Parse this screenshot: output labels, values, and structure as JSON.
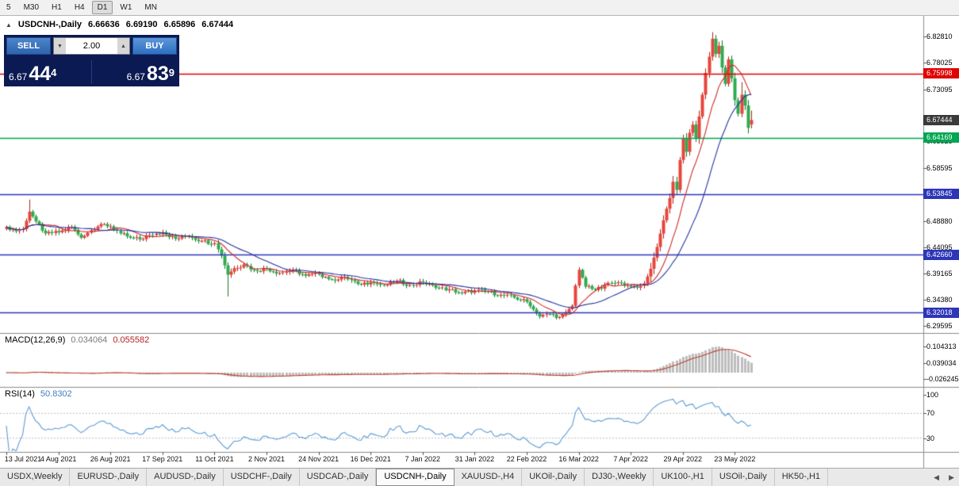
{
  "toolbar": {
    "timeframes": [
      {
        "label": "5",
        "active": false
      },
      {
        "label": "M30",
        "active": false
      },
      {
        "label": "H1",
        "active": false
      },
      {
        "label": "H4",
        "active": false
      },
      {
        "label": "D1",
        "active": true
      },
      {
        "label": "W1",
        "active": false
      },
      {
        "label": "MN",
        "active": false
      }
    ]
  },
  "chart_header": {
    "collapse_icon": "▲",
    "symbol": "USDCNH-,Daily",
    "open": "6.66636",
    "high": "6.69190",
    "low": "6.65896",
    "close": "6.67444"
  },
  "trade_panel": {
    "sell_label": "SELL",
    "buy_label": "BUY",
    "volume": "2.00",
    "volume_down_icon": "▼",
    "volume_up_icon": "▲",
    "sell_price": {
      "small": "6.67",
      "big": "44",
      "sup": "4"
    },
    "buy_price": {
      "small": "6.67",
      "big": "83",
      "sup": "9"
    }
  },
  "price_axis": {
    "ticks": [
      "6.82810",
      "6.78025",
      "6.73095",
      "6.63525",
      "6.58595",
      "6.48880",
      "6.44095",
      "6.39165",
      "6.34380",
      "6.29595"
    ],
    "badges": [
      {
        "text": "6.75998",
        "bg": "#e00000",
        "name": "resistance-level-badge"
      },
      {
        "text": "6.67444",
        "bg": "#3a3a3a",
        "name": "current-price-badge"
      },
      {
        "text": "6.64169",
        "bg": "#00a651",
        "name": "green-level-badge"
      },
      {
        "text": "6.53845",
        "bg": "#2d36b8",
        "name": "support-level-badge"
      },
      {
        "text": "6.42660",
        "bg": "#2d36b8",
        "name": "support-level-badge"
      },
      {
        "text": "6.32018",
        "bg": "#2d36b8",
        "name": "support-level-badge"
      }
    ]
  },
  "macd_panel": {
    "label": "MACD(12,26,9)",
    "value_main": "0.034064",
    "value_signal": "0.055582",
    "axis": [
      "0.104313",
      "0.039034",
      "-0.026245"
    ]
  },
  "rsi_panel": {
    "label": "RSI(14)",
    "value": "50.8302",
    "axis": [
      "100",
      "70",
      "30"
    ]
  },
  "tabs": {
    "items": [
      "USDX,Weekly",
      "EURUSD-,Daily",
      "AUDUSD-,Daily",
      "USDCHF-,Daily",
      "USDCAD-,Daily",
      "USDCNH-,Daily",
      "XAUUSD-,H4",
      "UKOil-,Daily",
      "DJ30-,Weekly",
      "UK100-,H1",
      "USOil-,Daily",
      "HK50-,H1"
    ],
    "active": "USDCNH-,Daily",
    "scroll_left": "◀",
    "scroll_right": "▶"
  },
  "chart_data": {
    "type": "candlestick",
    "symbol": "USDCNH-",
    "timeframe": "Daily",
    "ohlc": {
      "open": 6.66636,
      "high": 6.6919,
      "low": 6.65896,
      "close": 6.67444
    },
    "ylim": [
      6.2828,
      6.863
    ],
    "current_price": 6.67444,
    "levels": [
      {
        "price": 6.75998,
        "color": "#e00000"
      },
      {
        "price": 6.64169,
        "color": "#00a651"
      },
      {
        "price": 6.53845,
        "color": "#2d36b8"
      },
      {
        "price": 6.4266,
        "color": "#2d36b8"
      },
      {
        "price": 6.32018,
        "color": "#2d36b8"
      }
    ],
    "dates": [
      "13 Jul 2021",
      "4 Aug 2021",
      "26 Aug 2021",
      "17 Sep 2021",
      "11 Oct 2021",
      "2 Nov 2021",
      "24 Nov 2021",
      "16 Dec 2021",
      "7 Jan 2022",
      "31 Jan 2022",
      "22 Feb 2022",
      "16 Mar 2022",
      "7 Apr 2022",
      "29 Apr 2022",
      "23 May 2022"
    ],
    "candles_per_date_tick": 16,
    "candle_count": 230,
    "first_open": 6.474,
    "close_anchors": [
      [
        0,
        6.478
      ],
      [
        3,
        6.47
      ],
      [
        5,
        6.474
      ],
      [
        7,
        6.506
      ],
      [
        9,
        6.488
      ],
      [
        12,
        6.466
      ],
      [
        16,
        6.468
      ],
      [
        20,
        6.478
      ],
      [
        23,
        6.458
      ],
      [
        26,
        6.472
      ],
      [
        29,
        6.483
      ],
      [
        32,
        6.479
      ],
      [
        35,
        6.466
      ],
      [
        38,
        6.458
      ],
      [
        41,
        6.455
      ],
      [
        44,
        6.463
      ],
      [
        48,
        6.468
      ],
      [
        52,
        6.456
      ],
      [
        56,
        6.461
      ],
      [
        60,
        6.452
      ],
      [
        64,
        6.448
      ],
      [
        66,
        6.425
      ],
      [
        68,
        6.39
      ],
      [
        70,
        6.402
      ],
      [
        73,
        6.409
      ],
      [
        76,
        6.398
      ],
      [
        80,
        6.401
      ],
      [
        84,
        6.393
      ],
      [
        88,
        6.399
      ],
      [
        92,
        6.388
      ],
      [
        96,
        6.391
      ],
      [
        100,
        6.381
      ],
      [
        104,
        6.386
      ],
      [
        108,
        6.373
      ],
      [
        112,
        6.376
      ],
      [
        116,
        6.37
      ],
      [
        120,
        6.379
      ],
      [
        124,
        6.371
      ],
      [
        128,
        6.376
      ],
      [
        132,
        6.366
      ],
      [
        136,
        6.363
      ],
      [
        140,
        6.356
      ],
      [
        144,
        6.361
      ],
      [
        148,
        6.358
      ],
      [
        152,
        6.353
      ],
      [
        156,
        6.348
      ],
      [
        160,
        6.34
      ],
      [
        162,
        6.326
      ],
      [
        164,
        6.313
      ],
      [
        167,
        6.318
      ],
      [
        170,
        6.312
      ],
      [
        172,
        6.321
      ],
      [
        174,
        6.333
      ],
      [
        175,
        6.37
      ],
      [
        176,
        6.399
      ],
      [
        178,
        6.368
      ],
      [
        181,
        6.362
      ],
      [
        184,
        6.371
      ],
      [
        188,
        6.376
      ],
      [
        192,
        6.368
      ],
      [
        194,
        6.366
      ],
      [
        196,
        6.374
      ],
      [
        198,
        6.401
      ],
      [
        200,
        6.441
      ],
      [
        202,
        6.49
      ],
      [
        204,
        6.531
      ],
      [
        205,
        6.561
      ],
      [
        206,
        6.546
      ],
      [
        207,
        6.601
      ],
      [
        208,
        6.641
      ],
      [
        209,
        6.616
      ],
      [
        210,
        6.651
      ],
      [
        211,
        6.666
      ],
      [
        212,
        6.641
      ],
      [
        213,
        6.681
      ],
      [
        214,
        6.721
      ],
      [
        215,
        6.761
      ],
      [
        216,
        6.791
      ],
      [
        217,
        6.824
      ],
      [
        218,
        6.796
      ],
      [
        219,
        6.811
      ],
      [
        220,
        6.771
      ],
      [
        221,
        6.741
      ],
      [
        222,
        6.786
      ],
      [
        223,
        6.751
      ],
      [
        224,
        6.711
      ],
      [
        225,
        6.686
      ],
      [
        226,
        6.721
      ],
      [
        227,
        6.701
      ],
      [
        228,
        6.66
      ],
      [
        229,
        6.67444
      ]
    ],
    "long_wicks": [
      {
        "i": 7,
        "high": 6.528
      },
      {
        "i": 68,
        "low": 6.35
      },
      {
        "i": 217,
        "high": 6.836
      },
      {
        "i": 226,
        "high": 6.744
      }
    ],
    "last_candle": {
      "open": 6.66636,
      "high": 6.6919,
      "low": 6.65896,
      "close": 6.67444
    },
    "up_color": "#e8453c",
    "down_color": "#30ab50",
    "ma_fast": {
      "period": 10,
      "color": "#d02828"
    },
    "ma_slow": {
      "period": 21,
      "color": "#2433a0"
    },
    "macd": {
      "fast": 12,
      "slow": 26,
      "signal": 9,
      "current_main": 0.034064,
      "current_signal": 0.055582,
      "axis_max": 0.104313,
      "axis_mid": 0.039034,
      "axis_min": -0.026245,
      "histogram_color": "#bdbdbd",
      "signal_color": "#c23b2e"
    },
    "rsi": {
      "period": 14,
      "current": 50.8302,
      "levels": [
        70,
        30
      ],
      "color": "#5b9bd5"
    }
  }
}
